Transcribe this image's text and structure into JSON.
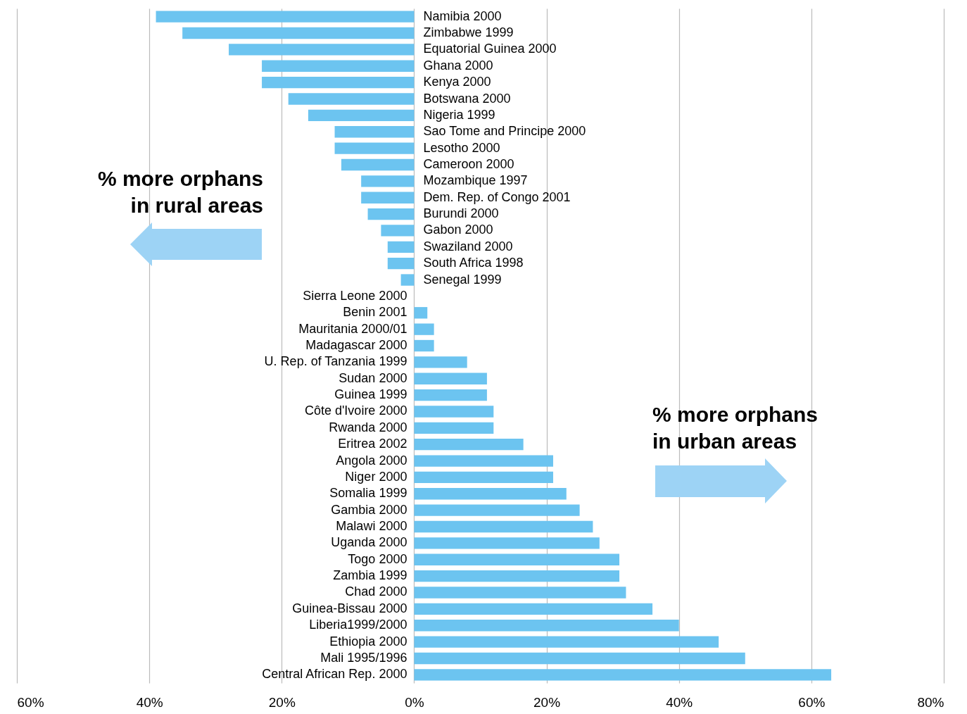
{
  "chart_data": {
    "type": "bar",
    "orientation": "horizontal",
    "categories": [
      "Namibia 2000",
      "Zimbabwe 1999",
      "Equatorial Guinea 2000",
      "Ghana 2000",
      "Kenya 2000",
      "Botswana 2000",
      "Nigeria 1999",
      "Sao Tome and Principe 2000",
      "Lesotho 2000",
      "Cameroon 2000",
      "Mozambique 1997",
      "Dem. Rep. of Congo 2001",
      "Burundi 2000",
      "Gabon 2000",
      "Swaziland 2000",
      "South Africa 1998",
      "Senegal 1999",
      "Sierra Leone 2000",
      "Benin 2001",
      "Mauritania 2000/01",
      "Madagascar 2000",
      "U. Rep. of Tanzania 1999",
      "Sudan 2000",
      "Guinea  1999",
      "Côte d'Ivoire 2000",
      "Rwanda 2000",
      "Eritrea 2002",
      "Angola 2000",
      "Niger 2000",
      "Somalia 1999",
      "Gambia 2000",
      "Malawi 2000",
      "Uganda 2000",
      "Togo 2000",
      "Zambia 1999",
      "Chad 2000",
      "Guinea-Bissau 2000",
      "Liberia1999/2000",
      "Ethiopia 2000",
      "Mali 1995/1996",
      "Central African Rep. 2000"
    ],
    "values": [
      -39,
      -35,
      -28,
      -23,
      -23,
      -19,
      -16,
      -12,
      -12,
      -11,
      -8,
      -8,
      -7,
      -5,
      -4,
      -4,
      -2,
      0,
      2,
      3,
      3,
      8,
      11,
      11,
      12,
      12,
      16.5,
      21,
      21,
      23,
      25,
      27,
      28,
      31,
      31,
      32,
      36,
      40,
      46,
      50,
      63
    ],
    "color": "#6cc4f0",
    "xlim": [
      -60,
      80
    ],
    "xticks": [
      {
        "value": -60,
        "label": "60%"
      },
      {
        "value": -40,
        "label": "40%"
      },
      {
        "value": -20,
        "label": "20%"
      },
      {
        "value": 0,
        "label": "0%"
      },
      {
        "value": 20,
        "label": "20%"
      },
      {
        "value": 40,
        "label": "40%"
      },
      {
        "value": 60,
        "label": "60%"
      },
      {
        "value": 80,
        "label": "80%"
      }
    ],
    "grid": "x",
    "annotations": [
      "% more orphans\nin rural areas",
      "% more orphans\nin urban areas"
    ]
  }
}
